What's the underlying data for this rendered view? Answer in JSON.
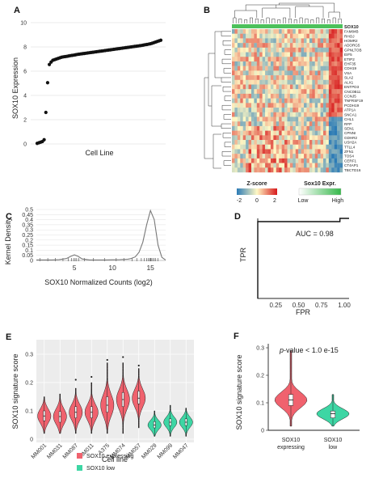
{
  "chart_data": [
    {
      "panel": "A",
      "type": "scatter",
      "ylabel": "SOX10 Expression",
      "xlabel": "Cell Line",
      "ylim": [
        0,
        10
      ],
      "yticks": [
        0,
        2,
        4,
        6,
        8,
        10
      ],
      "grid": "horizontal",
      "values": [
        0.05,
        0.1,
        0.15,
        0.2,
        0.35,
        2.6,
        5.05,
        6.55,
        6.75,
        6.9,
        6.95,
        7.0,
        7.05,
        7.1,
        7.15,
        7.18,
        7.2,
        7.22,
        7.25,
        7.28,
        7.3,
        7.32,
        7.35,
        7.38,
        7.4,
        7.42,
        7.44,
        7.46,
        7.48,
        7.5,
        7.52,
        7.54,
        7.56,
        7.58,
        7.6,
        7.62,
        7.64,
        7.66,
        7.68,
        7.7,
        7.72,
        7.74,
        7.76,
        7.78,
        7.8,
        7.82,
        7.84,
        7.86,
        7.88,
        7.9,
        7.92,
        7.94,
        7.96,
        7.98,
        8.0,
        8.02,
        8.04,
        8.06,
        8.08,
        8.1,
        8.12,
        8.15,
        8.18,
        8.2,
        8.23,
        8.26,
        8.3,
        8.35,
        8.4,
        8.45,
        8.5,
        8.55
      ]
    },
    {
      "panel": "B",
      "type": "heatmap",
      "genes": [
        "SOX10",
        "FAM84B",
        "RHOJ",
        "HOMR2",
        "ADORG5",
        "GPNLTOB",
        "EIF5",
        "ETIP2",
        "EHF35",
        "CDH19",
        "VSA",
        "SLA2",
        "ALX1",
        "ENTPD3",
        "CNC0B11",
        "CCNJ5",
        "TNFRSF19",
        "PCDH19",
        "ATP1A",
        "SNCA1",
        "CHL1",
        "RFP",
        "SEN1",
        "CPNNI",
        "GDHR2",
        "USH2A",
        "TTLL4",
        "ZFN1",
        "TOS4",
        "CERF1",
        "CT4AP1",
        "TBCTD16"
      ],
      "legend_zscore": {
        "label": "Z-score",
        "ticks": [
          "-2",
          "0",
          "2"
        ]
      },
      "legend_sox10": {
        "label": "Sox10 Expr.",
        "low": "Low",
        "high": "High"
      }
    },
    {
      "panel": "C",
      "type": "line",
      "ylabel": "Kernel Density",
      "xlabel": "SOX10 Normalized Counts (log2)",
      "xlim": [
        0,
        17
      ],
      "ylim": [
        0,
        0.5
      ],
      "yticks": [
        "0",
        "0.05",
        "0.1",
        "0.15",
        "0.2",
        "0.25",
        "0.3",
        "0.35",
        "0.4",
        "0.45",
        "0.5"
      ],
      "xticks": [
        "5",
        "10",
        "15"
      ],
      "x": [
        0,
        1,
        2,
        3,
        4,
        4.5,
        5,
        5.5,
        6,
        7,
        8,
        9,
        10,
        11,
        12,
        12.5,
        13,
        13.5,
        14,
        14.5,
        15,
        15.5,
        16,
        16.5,
        17
      ],
      "y": [
        0.005,
        0.005,
        0.005,
        0.008,
        0.02,
        0.04,
        0.055,
        0.04,
        0.015,
        0.005,
        0.005,
        0.005,
        0.006,
        0.008,
        0.012,
        0.02,
        0.035,
        0.08,
        0.18,
        0.35,
        0.49,
        0.4,
        0.15,
        0.03,
        0.005
      ]
    },
    {
      "panel": "D",
      "type": "line",
      "ylabel": "TPR",
      "xlabel": "FPR",
      "xticks": [
        "0.25",
        "0.50",
        "0.75",
        "1.00"
      ],
      "xlim": [
        0,
        1
      ],
      "ylim": [
        0,
        1
      ],
      "annotation": "AUC = 0.98",
      "x": [
        0,
        0,
        0.9,
        0.9,
        1.0
      ],
      "y": [
        0,
        0.96,
        0.96,
        1.0,
        1.0
      ]
    },
    {
      "panel": "E",
      "type": "violin",
      "ylabel": "SOX10 signature score",
      "xlabel": "Cell line",
      "ylim": [
        0,
        0.3
      ],
      "yticks": [
        "0",
        "0.1",
        "0.2",
        "0.3"
      ],
      "categories": [
        "MM001",
        "MM031",
        "MM087",
        "MM011",
        "A375",
        "MM074",
        "MM057",
        "MM029",
        "MM099",
        "MM047"
      ],
      "medians": [
        0.082,
        0.08,
        0.095,
        0.095,
        0.12,
        0.14,
        0.145,
        0.05,
        0.06,
        0.06
      ],
      "q1": [
        0.065,
        0.06,
        0.075,
        0.075,
        0.095,
        0.115,
        0.125,
        0.04,
        0.048,
        0.048
      ],
      "q3": [
        0.1,
        0.098,
        0.115,
        0.115,
        0.15,
        0.165,
        0.17,
        0.062,
        0.072,
        0.072
      ],
      "mins": [
        0.02,
        0.02,
        0.02,
        0.02,
        0.02,
        0.02,
        0.04,
        0.01,
        0.01,
        0.01
      ],
      "maxs": [
        0.15,
        0.16,
        0.18,
        0.2,
        0.27,
        0.27,
        0.25,
        0.1,
        0.12,
        0.11
      ],
      "groups": [
        "expressing",
        "expressing",
        "expressing",
        "expressing",
        "expressing",
        "expressing",
        "expressing",
        "low",
        "low",
        "low"
      ],
      "legend": [
        {
          "name": "SOX10 expressing",
          "color": "#f0626e"
        },
        {
          "name": "SOX10 low",
          "color": "#3dd6a4"
        }
      ]
    },
    {
      "panel": "F",
      "type": "violin",
      "ylabel": "SOX10 signature score",
      "ylim": [
        0,
        0.3
      ],
      "yticks": [
        "0",
        "0.1",
        "0.2",
        "0.3"
      ],
      "categories": [
        "SOX10 expressing",
        "SOX10 low"
      ],
      "category_lines": [
        [
          "SOX10",
          "expressing"
        ],
        [
          "SOX10",
          "low"
        ]
      ],
      "medians": [
        0.11,
        0.06
      ],
      "q1": [
        0.09,
        0.045
      ],
      "q3": [
        0.13,
        0.07
      ],
      "mins": [
        0.015,
        0.015
      ],
      "maxs": [
        0.29,
        0.13
      ],
      "colors": [
        "#f0626e",
        "#3dd6a4"
      ],
      "annotation_italic": "p",
      "annotation_rest": "-value < 1.0 e-15"
    }
  ]
}
